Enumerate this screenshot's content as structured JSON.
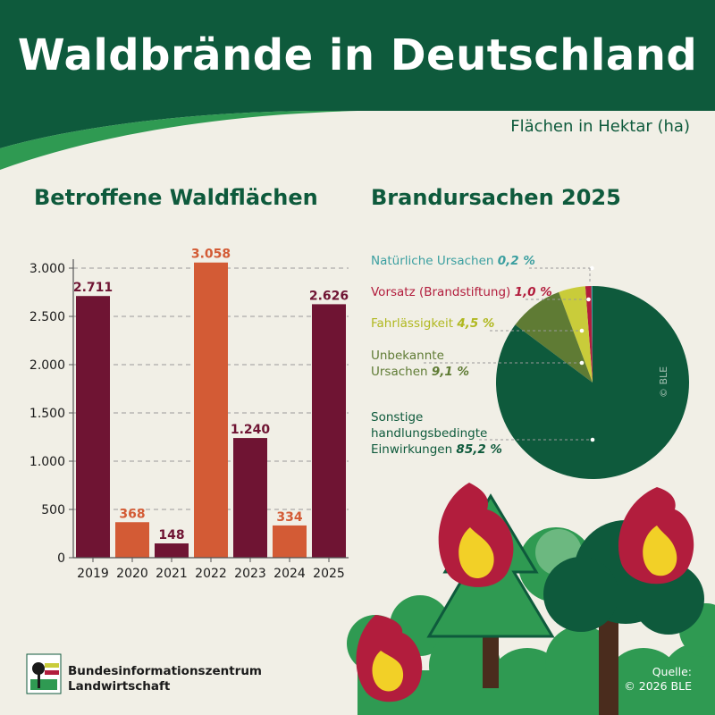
{
  "title": "Waldbrände in Deutschland",
  "subtitle": "Flächen in Hektar (ha)",
  "colors": {
    "dark_green": "#0e5a3c",
    "bright_green": "#2f9a52",
    "maroon": "#6f1433",
    "orange": "#d35b35",
    "yellow_green": "#c9cc3a",
    "olive": "#5f7b34",
    "teal": "#3b9fa0",
    "crimson": "#b21d3d"
  },
  "bar_section": {
    "title": "Betroffene Waldflächen"
  },
  "pie_section": {
    "title": "Brandursachen 2025"
  },
  "chart_data": [
    {
      "type": "bar",
      "title": "Betroffene Waldflächen",
      "categories": [
        "2019",
        "2020",
        "2021",
        "2022",
        "2023",
        "2024",
        "2025"
      ],
      "values": [
        2711,
        368,
        148,
        3058,
        1240,
        334,
        2626
      ],
      "value_labels": [
        "2.711",
        "368",
        "148",
        "3.058",
        "1.240",
        "334",
        "2.626"
      ],
      "bar_colors": [
        "#6f1433",
        "#d35b35",
        "#6f1433",
        "#d35b35",
        "#6f1433",
        "#d35b35",
        "#6f1433"
      ],
      "yticks": [
        0,
        500,
        1000,
        1500,
        2000,
        2500,
        3000
      ],
      "ytick_labels": [
        "0",
        "500",
        "1.000",
        "1.500",
        "2.000",
        "2.500",
        "3.000"
      ],
      "ylim": [
        0,
        3000
      ],
      "grid": "dashed-horizontal"
    },
    {
      "type": "pie",
      "title": "Brandursachen 2025",
      "slices": [
        {
          "label": "Natürliche Ursachen",
          "value": 0.2,
          "value_label": "0,2 %",
          "color": "#3b9fa0"
        },
        {
          "label": "Vorsatz (Brandstiftung)",
          "value": 1.0,
          "value_label": "1,0 %",
          "color": "#b21d3d"
        },
        {
          "label": "Fahrlässigkeit",
          "value": 4.5,
          "value_label": "4,5 %",
          "color": "#c9cc3a"
        },
        {
          "label": "Unbekannte Ursachen",
          "value": 9.1,
          "value_label": "9,1 %",
          "color": "#5f7b34"
        },
        {
          "label": "Sonstige handlungsbedingte Einwirkungen",
          "value": 85.2,
          "value_label": "85,2 %",
          "color": "#0e5a3c"
        }
      ]
    }
  ],
  "legend": [
    {
      "text": "Natürliche Ursachen",
      "pct": "0,2 %"
    },
    {
      "text": "Vorsatz (Brandstiftung)",
      "pct": "1,0 %"
    },
    {
      "text": "Fahrlässigkeit",
      "pct": "4,5 %"
    },
    {
      "line1": "Unbekannte",
      "line2": "Ursachen",
      "pct": "9,1 %"
    },
    {
      "line1": "Sonstige",
      "line2": "handlungsbedingte",
      "line3": "Einwirkungen",
      "pct": "85,2 %"
    }
  ],
  "footer": {
    "org_line1": "Bundesinformationszentrum",
    "org_line2": "Landwirtschaft",
    "source_line1": "Quelle:",
    "source_line2": "© 2026 BLE"
  },
  "watermark": "© BLE"
}
